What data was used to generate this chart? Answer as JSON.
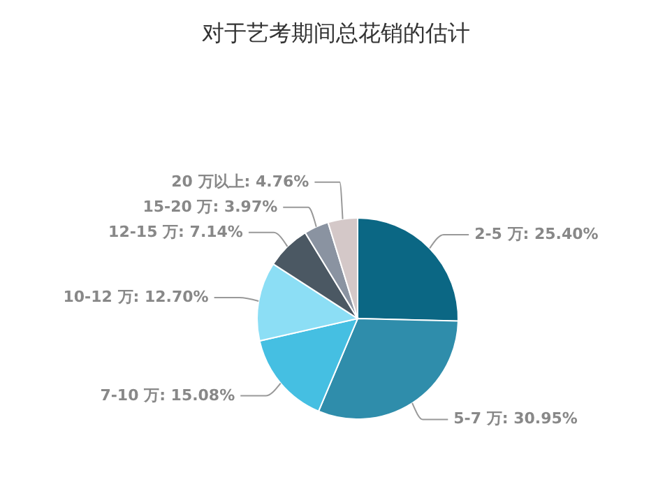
{
  "chart_data": {
    "type": "pie",
    "title": "对于艺考期间总花销的估计",
    "categories": [
      "2-5 万",
      "5-7 万",
      "7-10 万",
      "10-12 万",
      "12-15 万",
      "15-20 万",
      "20 万以上"
    ],
    "values": [
      25.4,
      30.95,
      15.08,
      12.7,
      7.14,
      3.97,
      4.76
    ],
    "colors": [
      "#0b6784",
      "#2f8dab",
      "#45bfe2",
      "#8cdef5",
      "#4b5863",
      "#8a93a1",
      "#d4c8c8"
    ],
    "value_labels": [
      "25.40%",
      "30.95%",
      "15.08%",
      "12.70%",
      "7.14%",
      "3.97%",
      "4.76%"
    ],
    "legend": false
  }
}
